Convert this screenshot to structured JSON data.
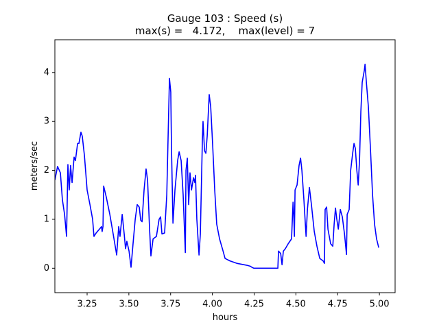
{
  "chart_data": {
    "type": "line",
    "title": "Gauge 103 : Speed (s)",
    "subtitle": "max(s) =   4.172,    max(level) = 7",
    "xlabel": "hours",
    "ylabel": "meters/sec",
    "xlim": [
      3.057,
      5.094
    ],
    "ylim": [
      -0.5,
      4.67
    ],
    "xticks": [
      3.25,
      {
        "value": 3.5,
        "label": "3.50"
      },
      3.75,
      {
        "value": 4.0,
        "label": "4.00"
      },
      4.25,
      {
        "value": 4.5,
        "label": "4.50"
      },
      4.75,
      {
        "value": 5.0,
        "label": "5.00"
      }
    ],
    "yticks": [
      0,
      1,
      2,
      3,
      4
    ],
    "grid": false,
    "series": [
      {
        "color": "#0000ff",
        "x": [
          3.057,
          3.073,
          3.09,
          3.102,
          3.115,
          3.127,
          3.135,
          3.143,
          3.151,
          3.16,
          3.172,
          3.18,
          3.193,
          3.201,
          3.213,
          3.221,
          3.234,
          3.25,
          3.267,
          3.283,
          3.291,
          3.304,
          3.324,
          3.336,
          3.34,
          3.345,
          3.349,
          3.365,
          3.386,
          3.406,
          3.427,
          3.439,
          3.447,
          3.46,
          3.472,
          3.48,
          3.488,
          3.501,
          3.513,
          3.525,
          3.538,
          3.55,
          3.562,
          3.571,
          3.579,
          3.591,
          3.603,
          3.612,
          3.624,
          3.632,
          3.645,
          3.665,
          3.681,
          3.69,
          3.698,
          3.714,
          3.727,
          3.735,
          3.743,
          3.751,
          3.755,
          3.764,
          3.776,
          3.792,
          3.801,
          3.813,
          3.825,
          3.838,
          3.842,
          3.85,
          3.858,
          3.866,
          3.875,
          3.887,
          3.895,
          3.899,
          3.907,
          3.92,
          3.928,
          3.94,
          3.944,
          3.953,
          3.961,
          3.969,
          3.981,
          3.99,
          4.002,
          4.014,
          4.026,
          4.043,
          4.064,
          4.076,
          4.105,
          4.146,
          4.207,
          4.228,
          4.236,
          4.248,
          4.392,
          4.396,
          4.409,
          4.417,
          4.425,
          4.437,
          4.454,
          4.474,
          4.483,
          4.487,
          4.491,
          4.495,
          4.507,
          4.519,
          4.528,
          4.536,
          4.548,
          4.561,
          4.569,
          4.581,
          4.593,
          4.61,
          4.626,
          4.643,
          4.663,
          4.671,
          4.675,
          4.684,
          4.692,
          4.708,
          4.721,
          4.729,
          4.737,
          4.745,
          4.754,
          4.766,
          4.778,
          4.791,
          4.803,
          4.807,
          4.819,
          4.828,
          4.84,
          4.848,
          4.856,
          4.865,
          4.873,
          4.881,
          4.889,
          4.897,
          4.91,
          4.914,
          4.922,
          4.934,
          4.947,
          4.959,
          4.971,
          4.983,
          4.996
        ],
        "values": [
          1.8,
          2.08,
          1.95,
          1.4,
          1.1,
          0.65,
          2.12,
          1.6,
          2.1,
          1.75,
          2.27,
          2.2,
          2.55,
          2.55,
          2.78,
          2.7,
          2.3,
          1.6,
          1.3,
          1.0,
          0.65,
          0.72,
          0.8,
          0.85,
          0.75,
          0.85,
          1.68,
          1.45,
          1.1,
          0.7,
          0.27,
          0.85,
          0.65,
          1.1,
          0.7,
          0.4,
          0.55,
          0.35,
          0.02,
          0.5,
          1.0,
          1.3,
          1.25,
          0.98,
          0.95,
          1.6,
          2.03,
          1.8,
          0.8,
          0.25,
          0.6,
          0.65,
          1.0,
          1.05,
          0.7,
          0.72,
          1.5,
          2.7,
          3.88,
          3.6,
          2.5,
          0.92,
          1.6,
          2.2,
          2.38,
          2.2,
          1.5,
          0.32,
          2.0,
          2.25,
          1.3,
          1.95,
          1.6,
          1.85,
          1.75,
          1.9,
          1.0,
          0.27,
          0.7,
          2.6,
          3.0,
          2.4,
          2.35,
          2.7,
          3.55,
          3.3,
          2.5,
          1.6,
          0.9,
          0.6,
          0.35,
          0.2,
          0.15,
          0.1,
          0.06,
          0.04,
          0.02,
          0.0,
          0.0,
          0.35,
          0.3,
          0.07,
          0.35,
          0.4,
          0.5,
          0.6,
          1.35,
          1.1,
          0.65,
          1.6,
          1.7,
          2.1,
          2.25,
          2.0,
          1.4,
          0.65,
          1.2,
          1.65,
          1.3,
          0.75,
          0.45,
          0.2,
          0.15,
          0.1,
          1.2,
          1.25,
          0.8,
          0.5,
          0.45,
          0.9,
          1.23,
          1.0,
          0.8,
          1.2,
          1.05,
          0.7,
          0.28,
          1.1,
          1.2,
          2.0,
          2.35,
          2.55,
          2.45,
          2.0,
          1.7,
          2.2,
          3.2,
          3.8,
          4.05,
          4.17,
          3.8,
          3.3,
          2.4,
          1.5,
          0.9,
          0.6,
          0.42
        ]
      }
    ]
  }
}
